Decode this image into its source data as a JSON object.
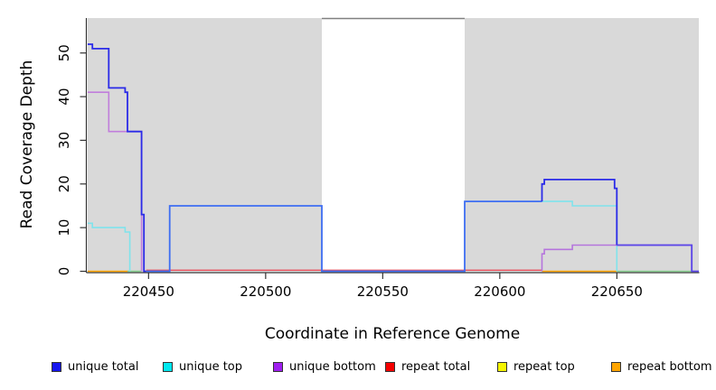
{
  "figure": {
    "x_axis_title": "Coordinate in Reference Genome",
    "y_axis_title": "Read Coverage Depth"
  },
  "legend": {
    "items": [
      {
        "name": "unique-total",
        "label": "unique total",
        "color": "#1515F0"
      },
      {
        "name": "unique-top",
        "label": "unique top",
        "color": "#00E8F0"
      },
      {
        "name": "unique-bottom",
        "label": "unique bottom",
        "color": "#A020F0"
      },
      {
        "name": "repeat-total",
        "label": "repeat total",
        "color": "#F50000"
      },
      {
        "name": "repeat-top",
        "label": "repeat top",
        "color": "#F5F500"
      },
      {
        "name": "repeat-bottom",
        "label": "repeat bottom",
        "color": "#FFA500"
      }
    ]
  },
  "chart_data": {
    "type": "line",
    "subtype": "step-after",
    "title": "",
    "xlabel": "Coordinate in Reference Genome",
    "ylabel": "Read Coverage Depth",
    "xlim": [
      220424,
      220685
    ],
    "ylim": [
      0,
      58
    ],
    "x_ticks": [
      220450,
      220500,
      220550,
      220600,
      220650
    ],
    "y_ticks": [
      0,
      10,
      20,
      30,
      40,
      50
    ],
    "grid": "off",
    "legend_position": "bottom",
    "shaded_regions": [
      {
        "x0": 220424,
        "x1": 220524,
        "color": "#D9D9D9"
      },
      {
        "x0": 220585,
        "x1": 220685,
        "color": "#D9D9D9"
      }
    ],
    "gap_top_border": {
      "x0": 220524,
      "x1": 220585,
      "color": "#808080"
    },
    "series": [
      {
        "name": "unique total",
        "color": "#1515F0",
        "points": [
          [
            220424,
            52
          ],
          [
            220426,
            51
          ],
          [
            220433,
            42
          ],
          [
            220440,
            41
          ],
          [
            220441,
            32
          ],
          [
            220447,
            13
          ],
          [
            220448,
            0
          ],
          [
            220459,
            15
          ],
          [
            220524,
            0
          ],
          [
            220585,
            16
          ],
          [
            220618,
            20
          ],
          [
            220619,
            21
          ],
          [
            220649,
            19
          ],
          [
            220650,
            6
          ],
          [
            220682,
            0
          ],
          [
            220685,
            0
          ]
        ]
      },
      {
        "name": "unique top",
        "color": "#00E8F0",
        "points": [
          [
            220424,
            11
          ],
          [
            220426,
            10
          ],
          [
            220440,
            9
          ],
          [
            220442,
            0
          ],
          [
            220459,
            15
          ],
          [
            220524,
            0
          ],
          [
            220585,
            16
          ],
          [
            220631,
            15
          ],
          [
            220650,
            0
          ],
          [
            220685,
            0
          ]
        ]
      },
      {
        "name": "unique bottom",
        "color": "#A020F0",
        "points": [
          [
            220424,
            41
          ],
          [
            220433,
            32
          ],
          [
            220447,
            0
          ],
          [
            220618,
            4
          ],
          [
            220619,
            5
          ],
          [
            220631,
            6
          ],
          [
            220682,
            0
          ],
          [
            220685,
            0
          ]
        ]
      },
      {
        "name": "repeat total",
        "color": "#F50000",
        "points": [
          [
            220424,
            0
          ],
          [
            220685,
            0
          ]
        ]
      },
      {
        "name": "repeat top",
        "color": "#F5F500",
        "points": [
          [
            220424,
            0
          ],
          [
            220685,
            0
          ]
        ]
      },
      {
        "name": "repeat bottom",
        "color": "#FFA500",
        "points": [
          [
            220424,
            0
          ],
          [
            220685,
            0
          ]
        ]
      }
    ],
    "render_segments": [
      {
        "color": "#FFA500",
        "width": 1.6,
        "points": [
          [
            220424,
            0
          ],
          [
            220441,
            0
          ]
        ]
      },
      {
        "color": "#86CE8E",
        "width": 1.6,
        "points": [
          [
            220441,
            0
          ],
          [
            220447,
            0
          ]
        ]
      },
      {
        "color": "#E84D5A",
        "width": 1.4,
        "dy": -1.2,
        "points": [
          [
            220449,
            0
          ],
          [
            220618,
            0
          ]
        ]
      },
      {
        "color": "#FFA500",
        "width": 1.6,
        "points": [
          [
            220618,
            0
          ],
          [
            220650,
            0
          ]
        ]
      },
      {
        "color": "#86CE8E",
        "width": 1.6,
        "points": [
          [
            220650,
            0
          ],
          [
            220682,
            0
          ]
        ]
      },
      {
        "color": "#7FE3EC",
        "width": 1.6,
        "points": [
          [
            220424,
            11
          ],
          [
            220426,
            11
          ],
          [
            220426,
            10
          ],
          [
            220440,
            10
          ],
          [
            220440,
            9
          ],
          [
            220442,
            9
          ],
          [
            220442,
            0
          ]
        ]
      },
      {
        "color": "#7FE3EC",
        "width": 1.6,
        "points": [
          [
            220618,
            16
          ],
          [
            220631,
            16
          ],
          [
            220631,
            15
          ],
          [
            220650,
            15
          ],
          [
            220650,
            0
          ]
        ]
      },
      {
        "color": "#C17EDC",
        "width": 1.6,
        "points": [
          [
            220424,
            41
          ],
          [
            220433,
            41
          ],
          [
            220433,
            32
          ],
          [
            220447,
            32
          ],
          [
            220447,
            0
          ]
        ]
      },
      {
        "color": "#B575DD",
        "width": 1.6,
        "points": [
          [
            220618,
            0
          ],
          [
            220618,
            4
          ],
          [
            220619,
            4
          ],
          [
            220619,
            5
          ],
          [
            220631,
            5
          ],
          [
            220631,
            6
          ],
          [
            220682,
            6
          ],
          [
            220682,
            0
          ]
        ]
      },
      {
        "color": "#2B2BE8",
        "width": 1.8,
        "points": [
          [
            220424,
            52
          ],
          [
            220426,
            52
          ],
          [
            220426,
            51
          ],
          [
            220433,
            51
          ],
          [
            220433,
            42
          ],
          [
            220440,
            42
          ],
          [
            220440,
            41
          ],
          [
            220441,
            41
          ],
          [
            220441,
            32
          ],
          [
            220447,
            32
          ],
          [
            220447,
            13
          ],
          [
            220448,
            13
          ],
          [
            220448,
            0
          ],
          [
            220449,
            0
          ]
        ]
      },
      {
        "color": "#3E6EF2",
        "width": 1.8,
        "points": [
          [
            220449,
            0
          ],
          [
            220459,
            0
          ],
          [
            220459,
            15
          ],
          [
            220524,
            15
          ],
          [
            220524,
            0
          ],
          [
            220585,
            0
          ],
          [
            220585,
            16
          ],
          [
            220618,
            16
          ]
        ]
      },
      {
        "color": "#2B2BE8",
        "width": 1.8,
        "points": [
          [
            220618,
            16
          ],
          [
            220618,
            20
          ],
          [
            220619,
            20
          ],
          [
            220619,
            21
          ],
          [
            220649,
            21
          ],
          [
            220649,
            19
          ],
          [
            220650,
            19
          ],
          [
            220650,
            6
          ]
        ]
      },
      {
        "color": "#5A45E8",
        "width": 1.8,
        "points": [
          [
            220650,
            6
          ],
          [
            220682,
            6
          ],
          [
            220682,
            0
          ],
          [
            220685,
            0
          ]
        ]
      }
    ]
  }
}
